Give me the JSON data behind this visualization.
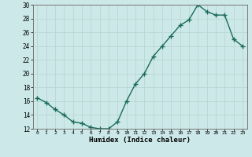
{
  "x": [
    0,
    1,
    2,
    3,
    4,
    5,
    6,
    7,
    8,
    9,
    10,
    11,
    12,
    13,
    14,
    15,
    16,
    17,
    18,
    19,
    20,
    21,
    22,
    23
  ],
  "y": [
    16.5,
    15.8,
    14.8,
    14.0,
    13.0,
    12.8,
    12.2,
    12.0,
    12.0,
    13.0,
    16.0,
    18.5,
    20.0,
    22.5,
    24.0,
    25.5,
    27.0,
    27.8,
    30.0,
    29.0,
    28.5,
    28.5,
    25.0,
    24.0
  ],
  "xlabel": "Humidex (Indice chaleur)",
  "ylim": [
    12,
    30
  ],
  "yticks": [
    12,
    14,
    16,
    18,
    20,
    22,
    24,
    26,
    28,
    30
  ],
  "xticks": [
    0,
    1,
    2,
    3,
    4,
    5,
    6,
    7,
    8,
    9,
    10,
    11,
    12,
    13,
    14,
    15,
    16,
    17,
    18,
    19,
    20,
    21,
    22,
    23
  ],
  "line_color": "#1a6b5a",
  "bg_color": "#cce8e8",
  "grid_color": "#b8d8d4",
  "marker": "+",
  "linewidth": 1.0,
  "markersize": 4
}
